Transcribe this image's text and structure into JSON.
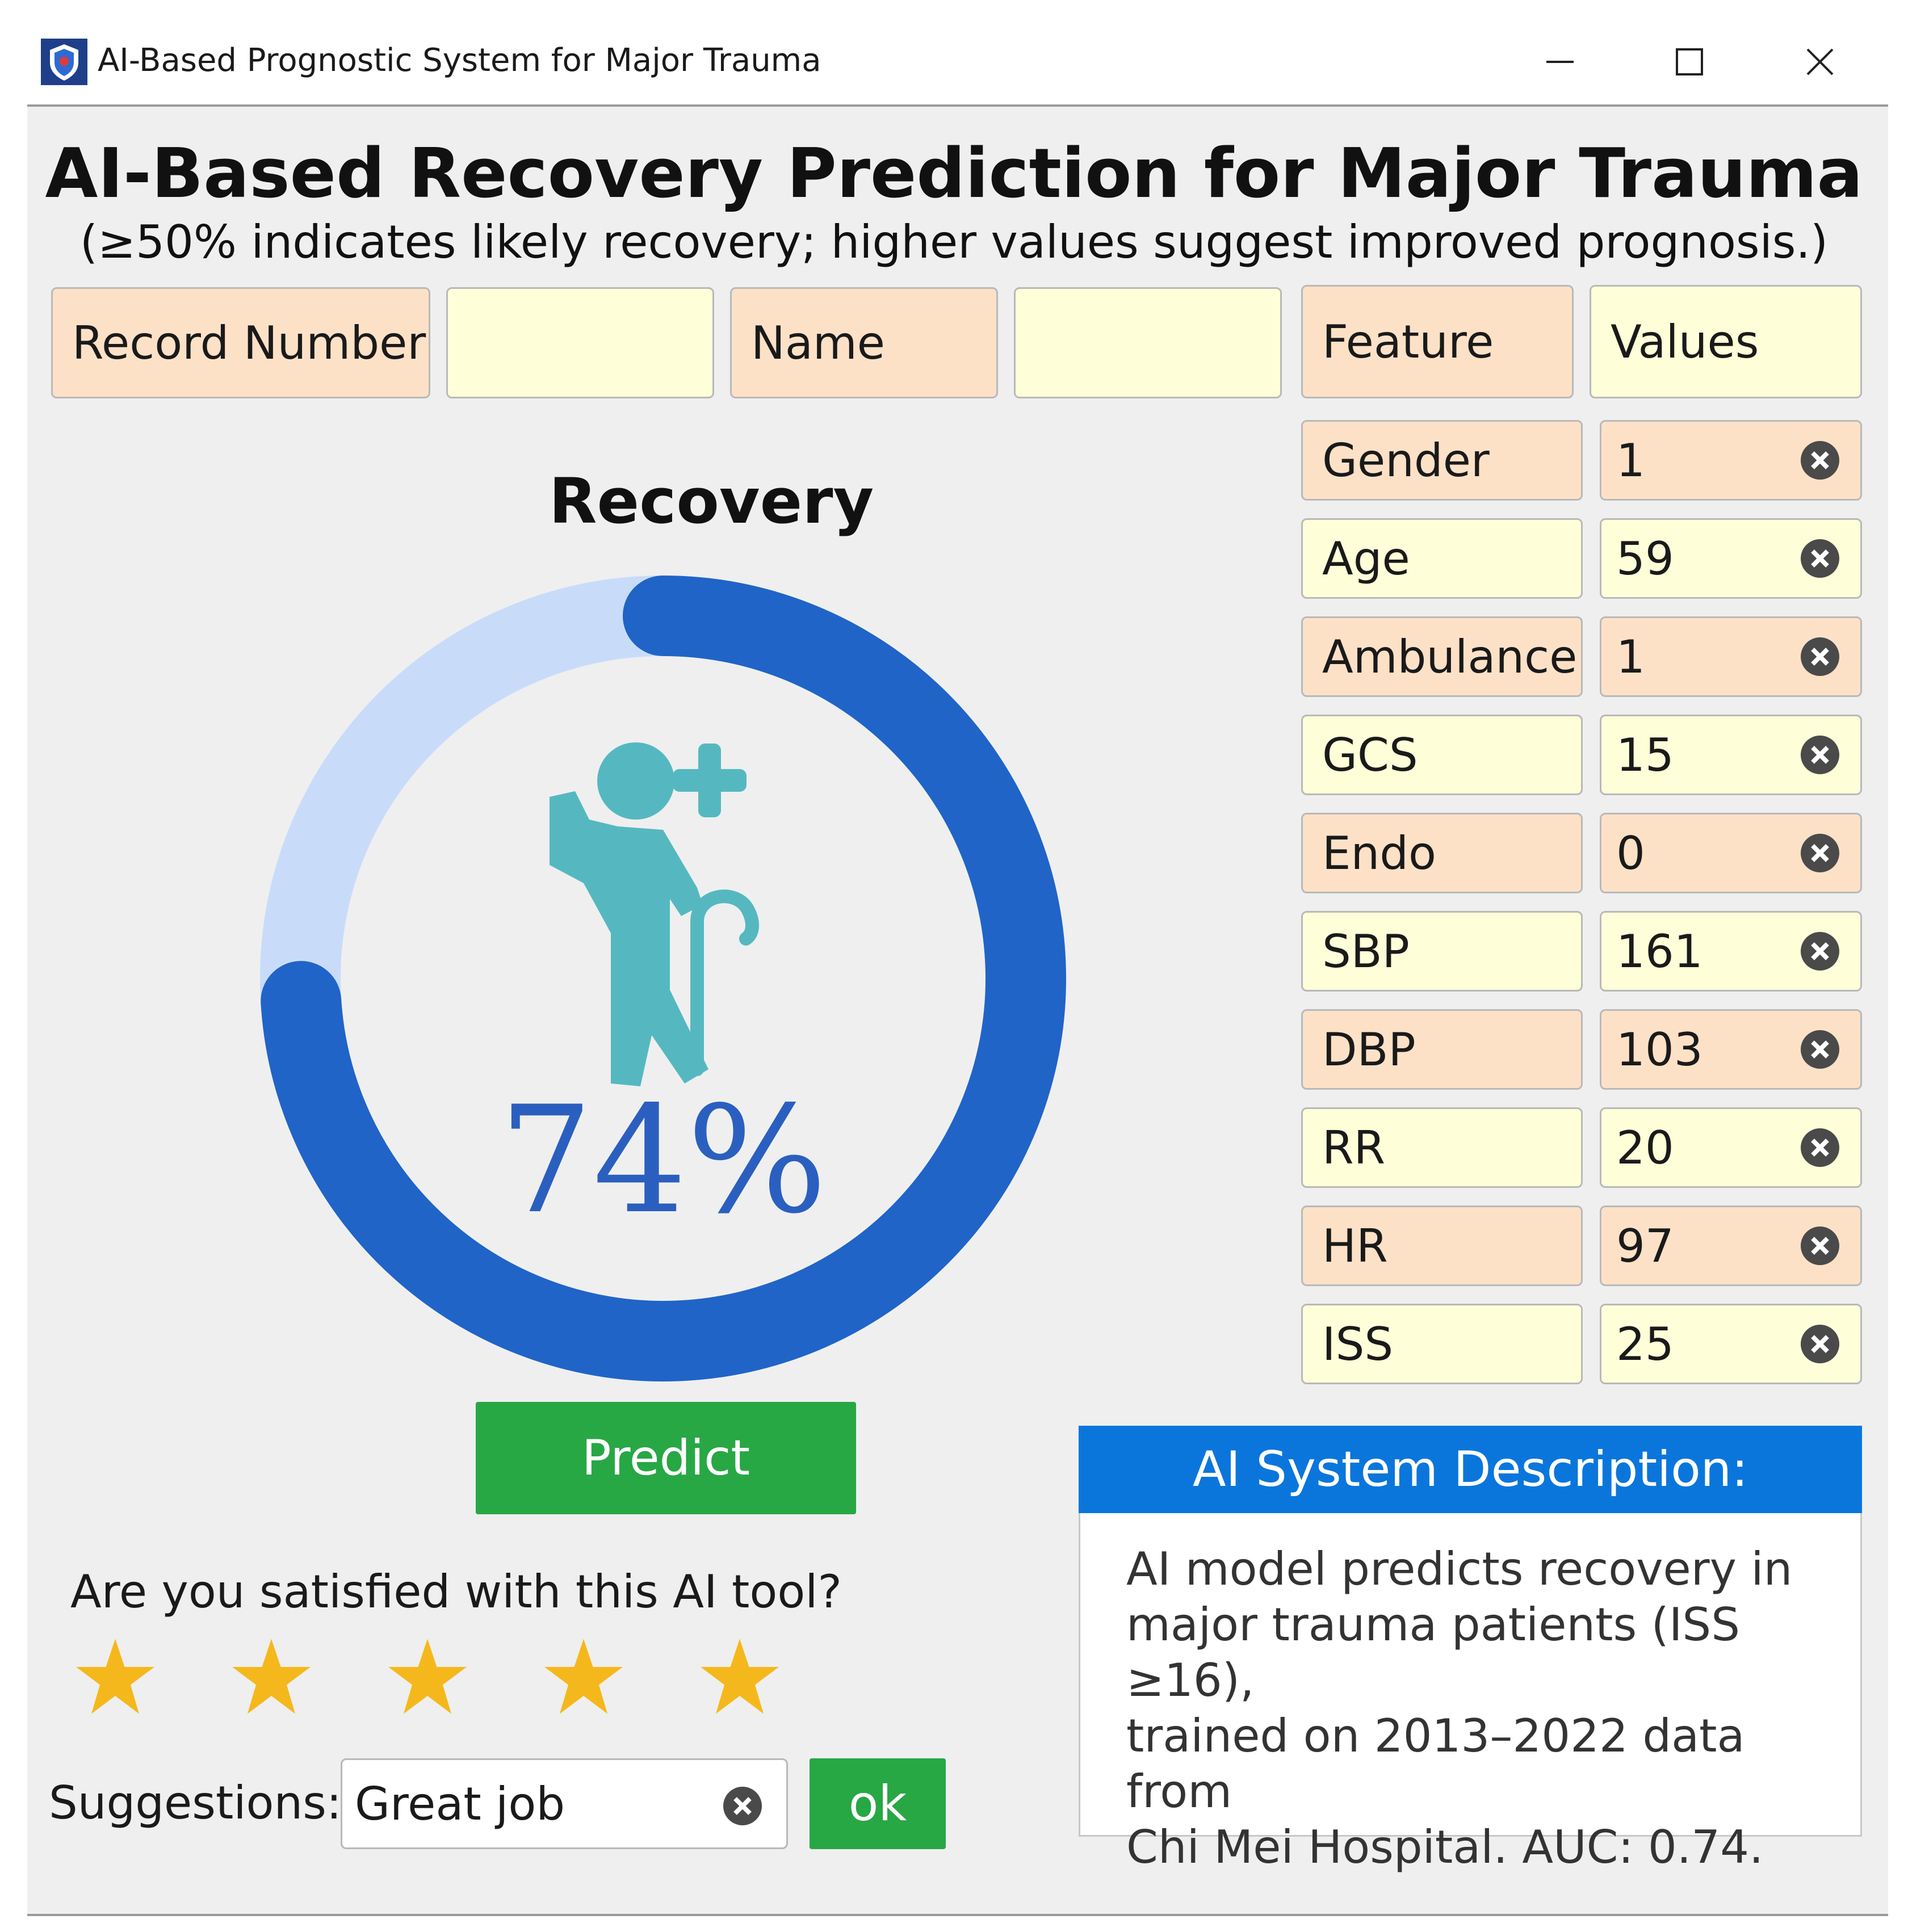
{
  "window": {
    "title": "AI-Based Prognostic System for Major Trauma",
    "icon": "shield-logo-icon",
    "controls": [
      "minimize-icon",
      "maximize-icon",
      "close-icon"
    ]
  },
  "header": {
    "title": "AI-Based Recovery Prediction for Major Trauma",
    "subtitle": "(≥50% indicates likely recovery; higher values suggest improved prognosis.)"
  },
  "record": {
    "record_number_label": "Record Number",
    "record_number_value": "",
    "name_label": "Name",
    "name_value": ""
  },
  "features": {
    "feature_header": "Feature",
    "values_header": "Values",
    "rows": [
      {
        "label": "Gender",
        "value": "1"
      },
      {
        "label": "Age",
        "value": "59"
      },
      {
        "label": "Ambulance",
        "value": "1"
      },
      {
        "label": "GCS",
        "value": "15"
      },
      {
        "label": "Endo",
        "value": "0"
      },
      {
        "label": "SBP",
        "value": "161"
      },
      {
        "label": "DBP",
        "value": "103"
      },
      {
        "label": "RR",
        "value": "20"
      },
      {
        "label": "HR",
        "value": "97"
      },
      {
        "label": "ISS",
        "value": "25"
      }
    ]
  },
  "result": {
    "label": "Recovery",
    "percent_text": "74%",
    "fraction": 0.74,
    "icon": "elderly-recovery-icon",
    "colors": {
      "arc": "#2064c8",
      "track": "#c8dcfa",
      "icon": "#55b8c0",
      "percent": "#2b5fbf"
    }
  },
  "actions": {
    "predict_label": "Predict"
  },
  "feedback": {
    "question": "Are you satisfied with this AI tool?",
    "stars_total": 5,
    "stars_filled": 5,
    "suggestions_label": "Suggestions:",
    "suggestions_value": "Great job",
    "ok_label": "ok"
  },
  "description": {
    "header": "AI System Description:",
    "lines": [
      "AI model predicts recovery in",
      "major trauma patients (ISS ≥16),",
      "trained on 2013–2022 data from",
      "Chi Mei Hospital. AUC: 0.74."
    ]
  },
  "colors": {
    "peach": "#fde1c7",
    "cream": "#fefed8",
    "green": "#28a745",
    "blue_header": "#0a76dc",
    "star": "#f5b81c"
  }
}
